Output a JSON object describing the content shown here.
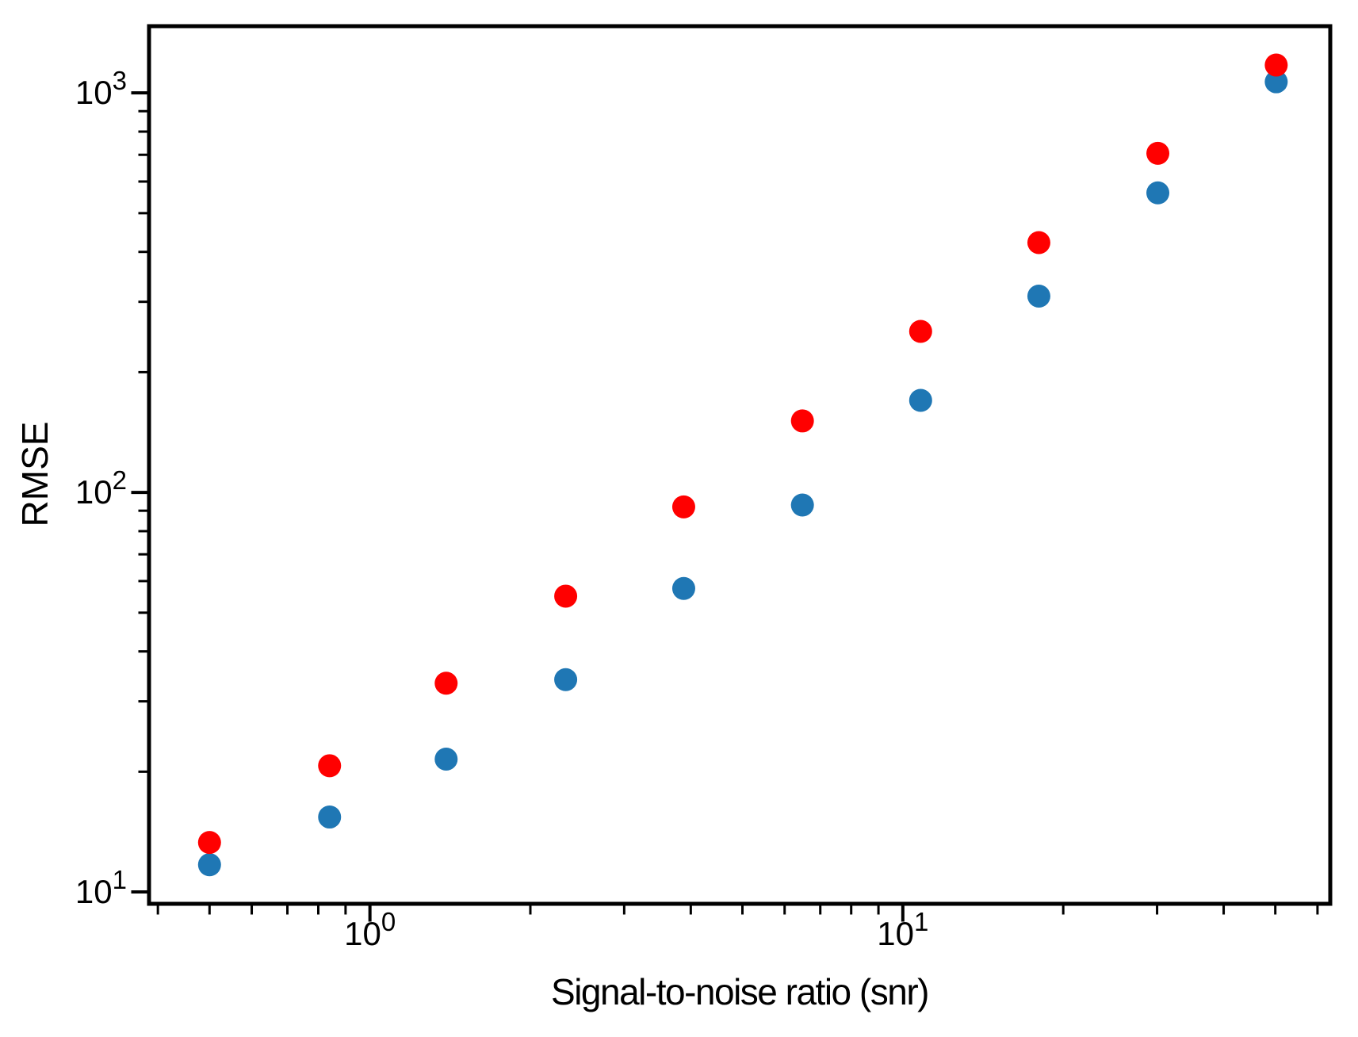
{
  "page": {
    "background": "#ffffff"
  },
  "chart_data": {
    "type": "scatter",
    "xlabel": "Signal-to-noise ratio (snr)",
    "ylabel": "RMSE",
    "x_scale": "log",
    "y_scale": "log",
    "xlim": [
      0.385,
      63.4
    ],
    "ylim": [
      9.34,
      1469
    ],
    "grid": false,
    "legend": "none",
    "tick_base": "10",
    "x_major_ticks": [
      {
        "value": 1,
        "exponent": "0"
      },
      {
        "value": 10,
        "exponent": "1"
      }
    ],
    "y_major_ticks": [
      {
        "value": 10,
        "exponent": "1"
      },
      {
        "value": 100,
        "exponent": "2"
      },
      {
        "value": 1000,
        "exponent": "3"
      }
    ],
    "x": [
      0.5,
      0.84,
      1.39,
      2.33,
      3.88,
      6.48,
      10.8,
      18.0,
      30.1,
      50.2
    ],
    "series": [
      {
        "name": "blue",
        "color": "#1f77b4",
        "marker": "circle",
        "values": [
          11.7,
          15.4,
          21.5,
          34,
          57.5,
          93,
          170,
          310,
          562,
          1066
        ]
      },
      {
        "name": "red",
        "color": "#ff0000",
        "marker": "circle",
        "values": [
          13.3,
          20.7,
          33.3,
          55,
          92,
          151,
          253,
          422,
          706,
          1174
        ]
      }
    ],
    "marker_diameter_px": 29,
    "axis_color": "#000000"
  }
}
